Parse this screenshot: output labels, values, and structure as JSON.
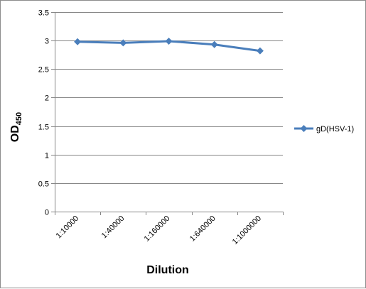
{
  "chart_data": {
    "type": "line",
    "categories": [
      "1:10000",
      "1:40000",
      "1:160000",
      "1:640000",
      "1:1000000"
    ],
    "series": [
      {
        "name": "gD(HSV-1)",
        "values": [
          2.98,
          2.96,
          2.99,
          2.93,
          2.82
        ],
        "color": "#4a7ebb",
        "marker": "diamond"
      }
    ],
    "xlabel": "Dilution",
    "ylabel": {
      "main": "OD",
      "subscript": "450"
    },
    "ylim": [
      0,
      3.5
    ],
    "yticks": [
      "0",
      "0.5",
      "1",
      "1.5",
      "2",
      "2.5",
      "3",
      "3.5"
    ],
    "grid": "horizontal",
    "legend": "right"
  }
}
